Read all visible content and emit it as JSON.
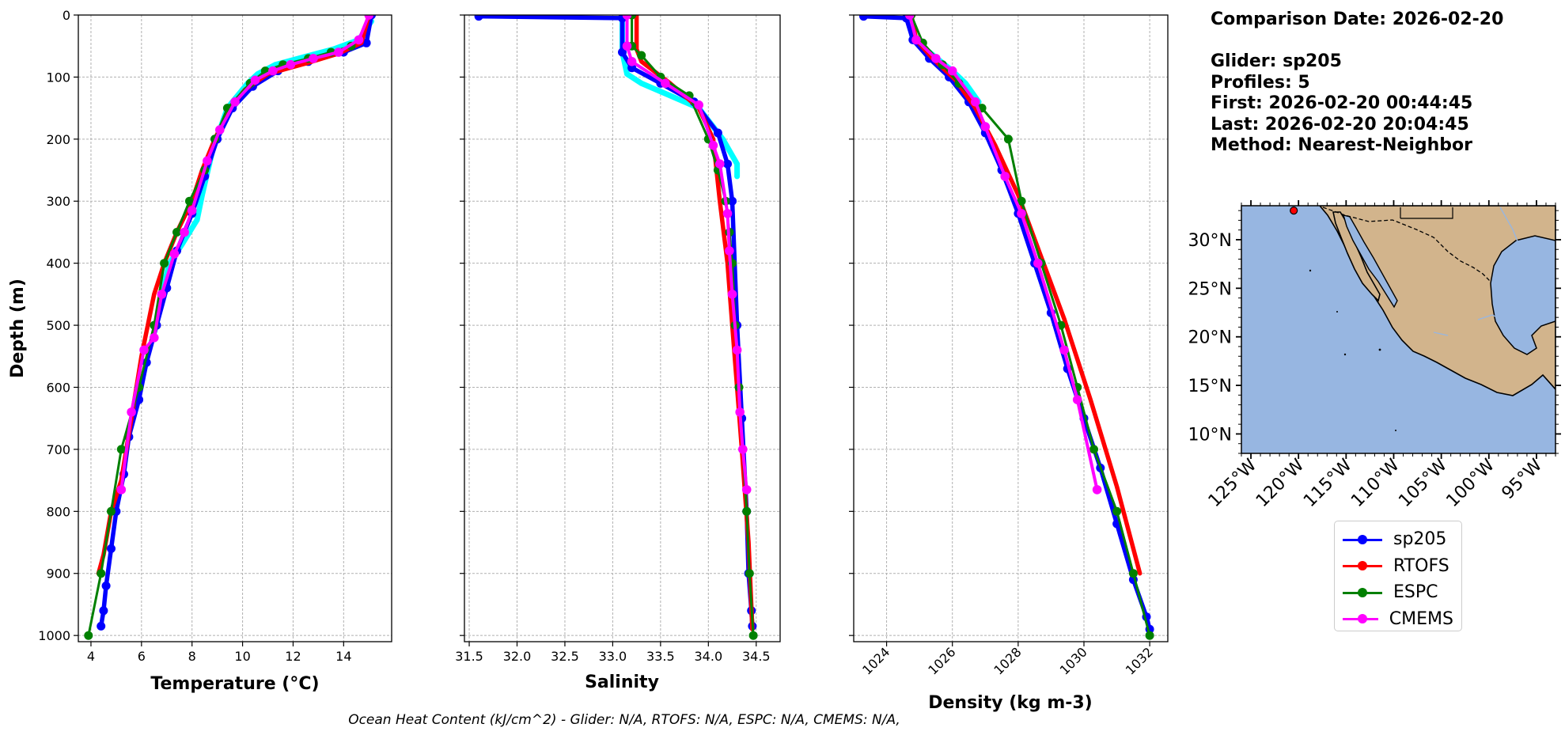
{
  "chart_data": [
    {
      "type": "line",
      "name": "temperature",
      "xlabel": "Temperature (°C)",
      "ylabel": "Depth (m)",
      "xlim": [
        3.5,
        15.9
      ],
      "ylim": [
        1010,
        0
      ],
      "xticks": [
        4,
        6,
        8,
        10,
        12,
        14
      ],
      "yticks": [
        0,
        100,
        200,
        300,
        400,
        500,
        600,
        700,
        800,
        900,
        1000
      ],
      "grid": true,
      "series": [
        {
          "name": "sp205_spread",
          "color": "#00ffff",
          "x": [
            15.1,
            14.6,
            13.6,
            12.4,
            11.3,
            10.6,
            10.2,
            9.4,
            8.8,
            8.4,
            8.2,
            7.6,
            7.1,
            6.8
          ],
          "y": [
            10,
            40,
            55,
            68,
            80,
            95,
            110,
            150,
            220,
            290,
            330,
            370,
            400,
            450
          ]
        },
        {
          "name": "sp205",
          "color": "#0000ff",
          "x": [
            15.1,
            14.9,
            14.0,
            12.6,
            11.4,
            10.4,
            9.6,
            9.0,
            8.5,
            8.0,
            7.4,
            7.0,
            6.6,
            6.2,
            5.9,
            5.5,
            5.3,
            5.0,
            4.8,
            4.6,
            4.5,
            4.4
          ],
          "y": [
            0,
            45,
            60,
            75,
            90,
            115,
            150,
            200,
            260,
            320,
            380,
            440,
            500,
            560,
            620,
            680,
            740,
            800,
            860,
            920,
            960,
            985
          ]
        },
        {
          "name": "RTOFS",
          "color": "#ff0000",
          "x": [
            15.0,
            14.7,
            13.8,
            12.5,
            11.0,
            10.1,
            9.5,
            8.9,
            8.4,
            8.0,
            7.4,
            6.9,
            6.5,
            6.0,
            5.6,
            5.2,
            4.8,
            4.5,
            4.3
          ],
          "y": [
            0,
            45,
            62,
            78,
            95,
            120,
            150,
            200,
            250,
            300,
            350,
            400,
            450,
            550,
            650,
            750,
            800,
            870,
            900
          ]
        },
        {
          "name": "ESPC",
          "color": "#008000",
          "x": [
            15.0,
            14.6,
            14.3,
            13.5,
            12.6,
            11.6,
            10.9,
            10.3,
            9.4,
            8.9,
            8.5,
            7.9,
            7.4,
            6.9,
            6.5,
            5.9,
            5.2,
            4.8,
            4.4,
            3.9
          ],
          "y": [
            0,
            40,
            50,
            60,
            70,
            80,
            90,
            110,
            150,
            200,
            250,
            300,
            350,
            400,
            500,
            600,
            700,
            800,
            900,
            1000
          ]
        },
        {
          "name": "CMEMS",
          "color": "#ff00ff",
          "x": [
            15.0,
            14.6,
            13.8,
            12.8,
            11.9,
            11.2,
            10.5,
            9.7,
            9.1,
            8.6,
            8.0,
            7.7,
            7.3,
            6.8,
            6.5,
            6.1,
            5.6,
            5.2
          ],
          "y": [
            0,
            40,
            60,
            70,
            80,
            90,
            105,
            140,
            185,
            235,
            315,
            350,
            385,
            450,
            520,
            540,
            640,
            765
          ]
        }
      ]
    },
    {
      "type": "line",
      "name": "salinity",
      "xlabel": "Salinity",
      "ylim": [
        1010,
        0
      ],
      "xlim": [
        31.45,
        34.75
      ],
      "xticks": [
        31.5,
        32.0,
        32.5,
        33.0,
        33.5,
        34.0,
        34.5
      ],
      "grid": true,
      "series": [
        {
          "name": "sp205_spread",
          "color": "#00ffff",
          "x": [
            33.1,
            33.1,
            33.15,
            33.3,
            33.6,
            33.9,
            34.15,
            34.3,
            34.3
          ],
          "y": [
            10,
            60,
            95,
            110,
            130,
            150,
            200,
            240,
            260
          ]
        },
        {
          "name": "sp205",
          "color": "#0000ff",
          "x": [
            31.6,
            33.1,
            33.1,
            33.2,
            33.5,
            33.85,
            34.1,
            34.2,
            34.25,
            34.3,
            34.35,
            34.4,
            34.42,
            34.45,
            34.46
          ],
          "y": [
            2,
            5,
            60,
            85,
            110,
            140,
            190,
            240,
            300,
            500,
            650,
            800,
            900,
            960,
            985
          ]
        },
        {
          "name": "RTOFS",
          "color": "#ff0000",
          "x": [
            33.25,
            33.25,
            33.3,
            33.6,
            33.9,
            34.05,
            34.12,
            34.2,
            34.25,
            34.3,
            34.35,
            34.42,
            34.46
          ],
          "y": [
            0,
            55,
            75,
            110,
            150,
            200,
            300,
            400,
            500,
            600,
            700,
            850,
            990
          ]
        },
        {
          "name": "ESPC",
          "color": "#008000",
          "x": [
            33.2,
            33.2,
            33.3,
            33.5,
            33.8,
            34.0,
            34.1,
            34.18,
            34.22,
            34.25,
            34.28,
            34.32,
            34.36,
            34.4,
            34.43,
            34.47
          ],
          "y": [
            0,
            50,
            65,
            100,
            130,
            200,
            250,
            300,
            350,
            400,
            500,
            600,
            700,
            800,
            900,
            1000
          ]
        },
        {
          "name": "CMEMS",
          "color": "#ff00ff",
          "x": [
            33.15,
            33.15,
            33.2,
            33.55,
            33.9,
            34.05,
            34.12,
            34.2,
            34.22,
            34.25,
            34.3,
            34.33,
            34.36,
            34.4
          ],
          "y": [
            0,
            50,
            75,
            110,
            145,
            210,
            240,
            320,
            380,
            450,
            540,
            640,
            700,
            765
          ]
        }
      ]
    },
    {
      "type": "line",
      "name": "density",
      "xlabel": "Density (kg m-3)",
      "ylim": [
        1010,
        0
      ],
      "xlim": [
        1023.0,
        1032.55
      ],
      "xticks": [
        1024,
        1026,
        1028,
        1030,
        1032
      ],
      "grid": true,
      "series": [
        {
          "name": "sp205_spread",
          "color": "#00ffff",
          "x": [
            1024.7,
            1024.8,
            1025.3,
            1026.0,
            1026.4,
            1026.8
          ],
          "y": [
            10,
            40,
            60,
            90,
            110,
            140
          ]
        },
        {
          "name": "sp205",
          "color": "#0000ff",
          "x": [
            1023.3,
            1024.6,
            1024.8,
            1025.3,
            1025.9,
            1026.5,
            1027.0,
            1027.5,
            1028.0,
            1028.5,
            1029.0,
            1029.5,
            1030.0,
            1030.5,
            1031.0,
            1031.5,
            1031.9,
            1032.0
          ],
          "y": [
            2,
            5,
            40,
            70,
            100,
            140,
            190,
            250,
            320,
            400,
            480,
            570,
            650,
            730,
            820,
            910,
            970,
            990
          ]
        },
        {
          "name": "RTOFS",
          "color": "#ff0000",
          "x": [
            1024.75,
            1024.9,
            1025.4,
            1026.1,
            1026.7,
            1027.3,
            1028.0,
            1028.7,
            1029.4,
            1030.2,
            1031.0,
            1031.7
          ],
          "y": [
            0,
            40,
            70,
            105,
            150,
            210,
            290,
            390,
            490,
            620,
            760,
            900
          ]
        },
        {
          "name": "ESPC",
          "color": "#008000",
          "x": [
            1024.75,
            1025.1,
            1025.7,
            1026.2,
            1026.9,
            1027.7,
            1028.1,
            1028.7,
            1029.3,
            1029.8,
            1030.3,
            1031.0,
            1031.5,
            1032.0
          ],
          "y": [
            0,
            45,
            80,
            110,
            150,
            200,
            300,
            400,
            500,
            600,
            700,
            800,
            900,
            1000
          ]
        },
        {
          "name": "CMEMS",
          "color": "#ff00ff",
          "x": [
            1024.7,
            1024.9,
            1025.5,
            1026.0,
            1026.7,
            1027.0,
            1027.6,
            1028.1,
            1028.6,
            1029.4,
            1029.8,
            1030.4
          ],
          "y": [
            0,
            40,
            70,
            90,
            140,
            180,
            260,
            320,
            400,
            540,
            620,
            765
          ]
        }
      ]
    },
    {
      "type": "map",
      "name": "location",
      "lon_ticks": [
        "125°W",
        "120°W",
        "115°W",
        "110°W",
        "105°W",
        "100°W",
        "95°W"
      ],
      "lat_ticks": [
        "30°N",
        "25°N",
        "20°N",
        "15°N",
        "10°N"
      ],
      "lon_range": [
        -126,
        -93
      ],
      "lat_range": [
        8,
        33.5
      ],
      "ocean_color": "#97b6e1",
      "land_color": "#d2b48c",
      "glider_location": {
        "lon": -120.5,
        "lat": 33.0,
        "color": "#ff0000"
      }
    }
  ],
  "info": {
    "comparison_date": "Comparison Date: 2026-02-20",
    "glider": "Glider: sp205",
    "profiles": "Profiles: 5",
    "first": "First: 2026-02-20 00:44:45",
    "last": "Last: 2026-02-20 20:04:45",
    "method": "Method: Nearest-Neighbor"
  },
  "legend": [
    {
      "label": "sp205",
      "color": "#0000ff"
    },
    {
      "label": "RTOFS",
      "color": "#ff0000"
    },
    {
      "label": "ESPC",
      "color": "#008000"
    },
    {
      "label": "CMEMS",
      "color": "#ff00ff"
    }
  ],
  "footer": "Ocean Heat Content (kJ/cm^2) - Glider: N/A,  RTOFS: N/A,  ESPC: N/A,  CMEMS: N/A,"
}
